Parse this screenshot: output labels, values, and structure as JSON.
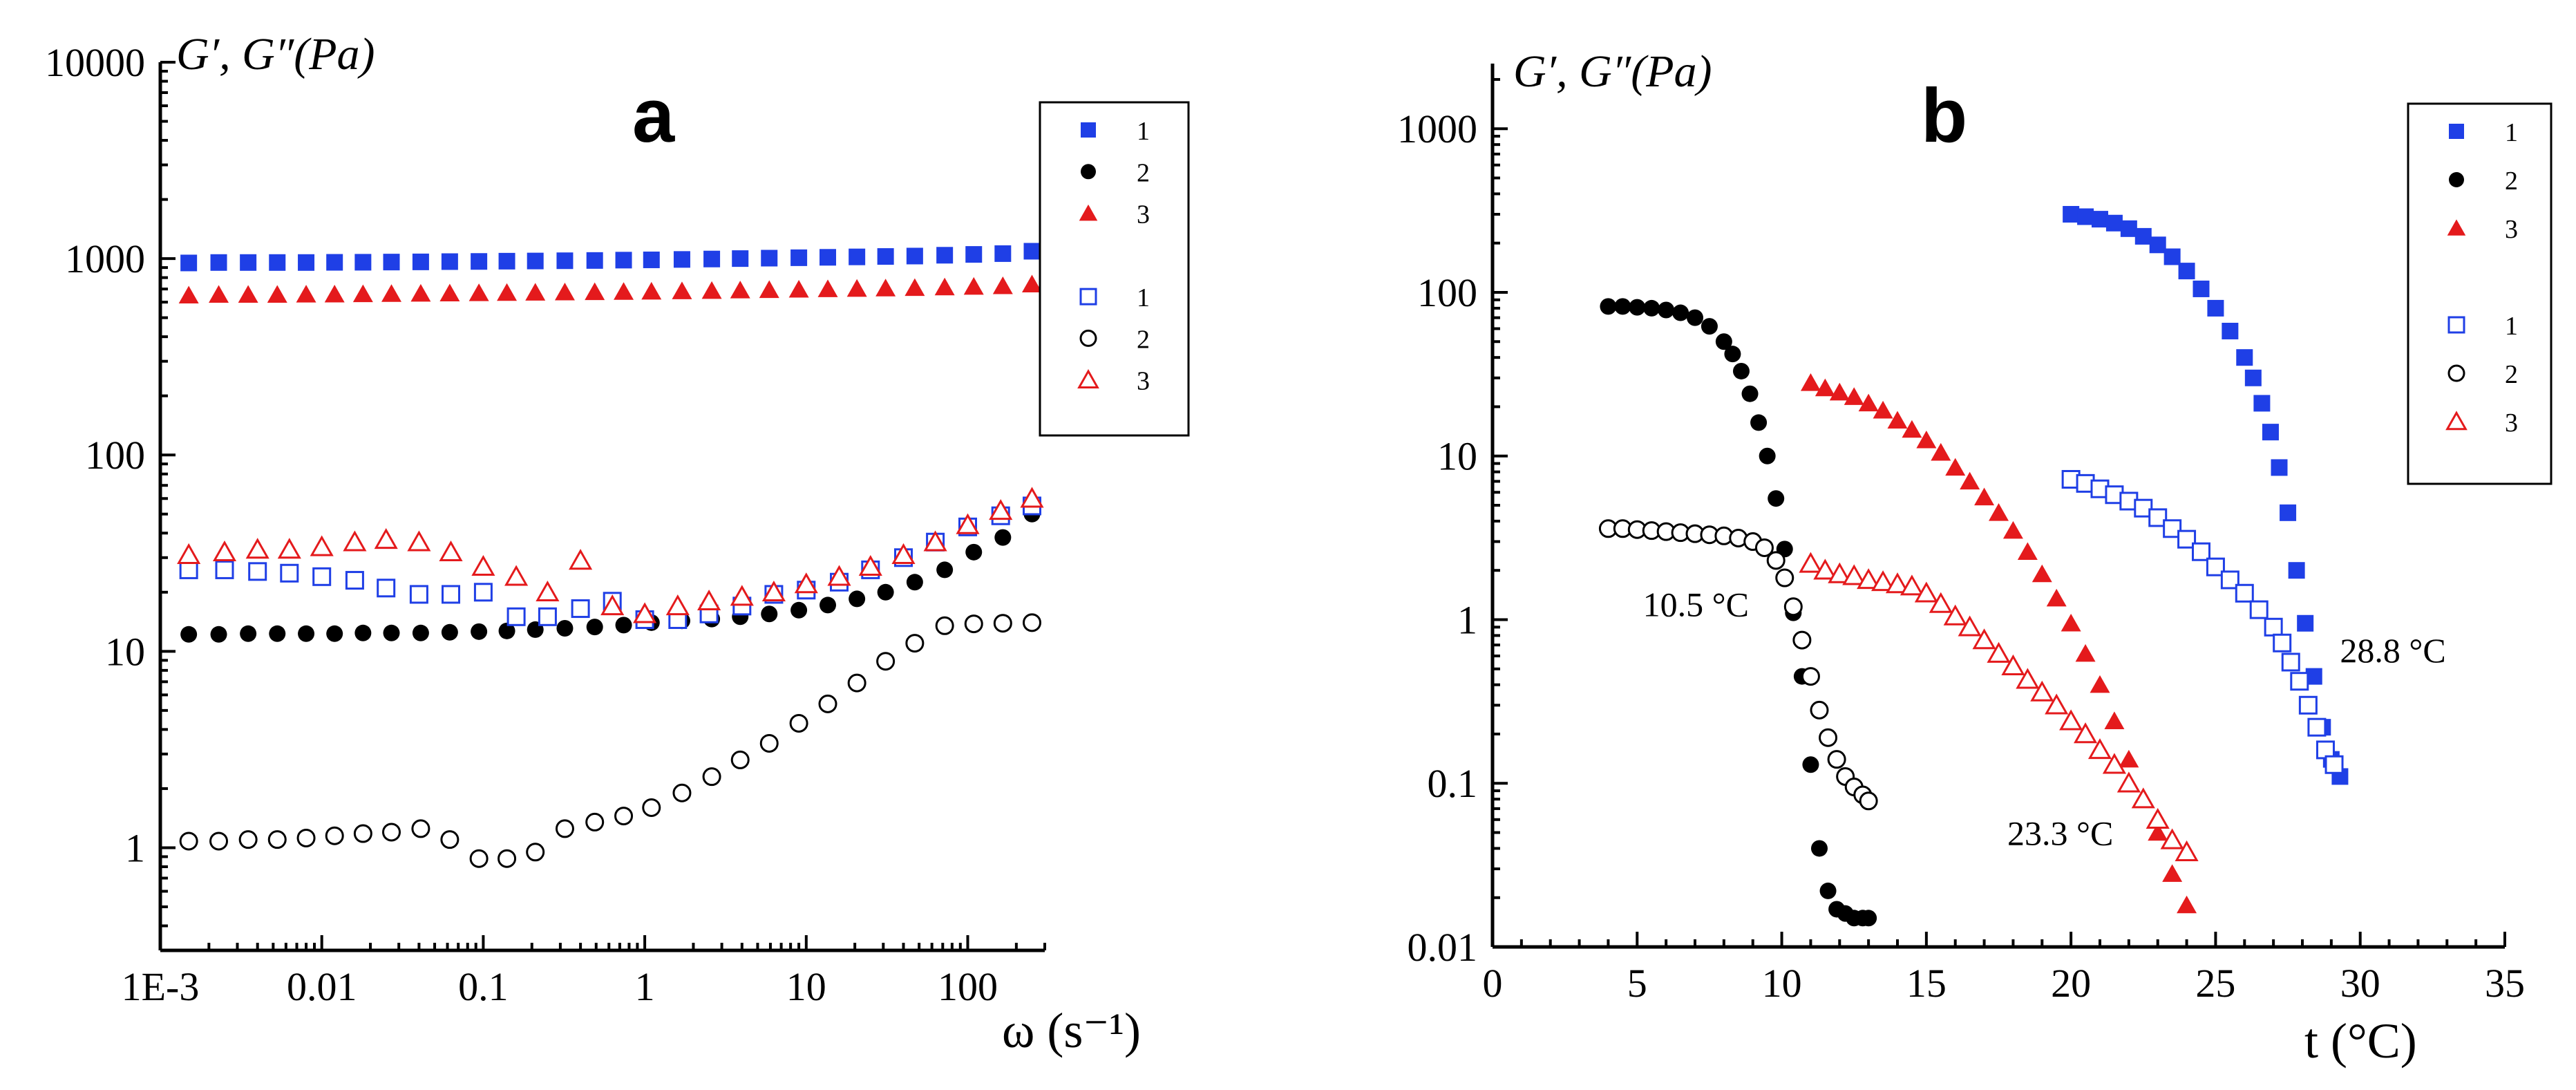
{
  "colors": {
    "series1": "#1f3fe6",
    "series2": "#000000",
    "series3": "#e41a1c",
    "axis": "#000000"
  },
  "chart_data": [
    {
      "type": "scatter",
      "panel_label": "a",
      "ylabel": "G′, G″(Pa)",
      "xlabel": "ω (s⁻¹)",
      "x_scale": "log",
      "y_scale": "log",
      "xlim": [
        0.001,
        300
      ],
      "ylim": [
        0.3,
        10000
      ],
      "x_ticks": [
        {
          "value": 0.001,
          "label": "1E-3"
        },
        {
          "value": 0.01,
          "label": "0.01"
        },
        {
          "value": 0.1,
          "label": "0.1"
        },
        {
          "value": 1,
          "label": "1"
        },
        {
          "value": 10,
          "label": "10"
        },
        {
          "value": 100,
          "label": "100"
        }
      ],
      "y_ticks": [
        {
          "value": 1,
          "label": "1"
        },
        {
          "value": 10,
          "label": "10"
        },
        {
          "value": 100,
          "label": "100"
        },
        {
          "value": 1000,
          "label": "1000"
        },
        {
          "value": 10000,
          "label": "10000"
        }
      ],
      "legend": {
        "placement": "top-right",
        "entries": [
          {
            "label": "1",
            "series": 0
          },
          {
            "label": "2",
            "series": 1
          },
          {
            "label": "3",
            "series": 2
          },
          {
            "label": "1",
            "series": 3
          },
          {
            "label": "2",
            "series": 4
          },
          {
            "label": "3",
            "series": 5
          }
        ]
      },
      "annotations": [],
      "series": [
        {
          "name": "1",
          "kind": "G′",
          "marker": "square",
          "filled": true,
          "color": "#1f3fe6",
          "x": [
            0.0015,
            0.0023,
            0.0035,
            0.0053,
            0.008,
            0.012,
            0.018,
            0.027,
            0.041,
            0.062,
            0.094,
            0.14,
            0.21,
            0.32,
            0.49,
            0.74,
            1.1,
            1.7,
            2.6,
            3.9,
            5.9,
            9,
            13.6,
            20.6,
            31,
            47,
            72,
            109,
            165,
            250
          ],
          "y": [
            950,
            955,
            955,
            955,
            955,
            957,
            958,
            960,
            962,
            965,
            967,
            970,
            972,
            975,
            978,
            982,
            985,
            990,
            995,
            1000,
            1005,
            1010,
            1015,
            1020,
            1025,
            1030,
            1040,
            1050,
            1060,
            1090
          ]
        },
        {
          "name": "2",
          "kind": "G′",
          "marker": "circle",
          "filled": true,
          "color": "#000000",
          "x": [
            0.0015,
            0.0023,
            0.0035,
            0.0053,
            0.008,
            0.012,
            0.018,
            0.027,
            0.041,
            0.062,
            0.094,
            0.14,
            0.21,
            0.32,
            0.49,
            0.74,
            1.1,
            1.7,
            2.6,
            3.9,
            5.9,
            9,
            13.6,
            20.6,
            31,
            47,
            72,
            109,
            165,
            250
          ],
          "y": [
            12.2,
            12.2,
            12.3,
            12.3,
            12.3,
            12.3,
            12.4,
            12.4,
            12.4,
            12.5,
            12.6,
            12.7,
            12.9,
            13.1,
            13.3,
            13.6,
            14,
            14.3,
            14.6,
            15,
            15.5,
            16.2,
            17.2,
            18.5,
            20,
            22.5,
            26,
            32,
            38,
            50
          ]
        },
        {
          "name": "3",
          "kind": "G′",
          "marker": "triangle",
          "filled": true,
          "color": "#e41a1c",
          "x": [
            0.0015,
            0.0023,
            0.0035,
            0.0053,
            0.008,
            0.012,
            0.018,
            0.027,
            0.041,
            0.062,
            0.094,
            0.14,
            0.21,
            0.32,
            0.49,
            0.74,
            1.1,
            1.7,
            2.6,
            3.9,
            5.9,
            9,
            13.6,
            20.6,
            31,
            47,
            72,
            109,
            165,
            250
          ],
          "y": [
            650,
            655,
            655,
            655,
            657,
            658,
            660,
            662,
            664,
            666,
            668,
            670,
            672,
            674,
            676,
            678,
            680,
            683,
            686,
            690,
            693,
            696,
            700,
            703,
            706,
            710,
            715,
            720,
            725,
            740
          ]
        },
        {
          "name": "1",
          "kind": "G″",
          "marker": "square",
          "filled": false,
          "color": "#1f3fe6",
          "x": [
            0.0015,
            0.0025,
            0.004,
            0.0063,
            0.01,
            0.016,
            0.025,
            0.04,
            0.063,
            0.1,
            0.16,
            0.25,
            0.4,
            0.63,
            1,
            1.6,
            2.5,
            4,
            6.3,
            10,
            16,
            25,
            40,
            63,
            100,
            160,
            250
          ],
          "y": [
            26,
            26,
            25.5,
            25,
            24,
            23,
            21,
            19.5,
            19.5,
            20,
            15,
            15,
            16.5,
            18,
            14.5,
            14.5,
            15.5,
            17,
            19.5,
            20.5,
            22.5,
            26,
            30,
            36,
            43,
            49,
            55
          ]
        },
        {
          "name": "2",
          "kind": "G″",
          "marker": "circle",
          "filled": false,
          "color": "#000000",
          "x": [
            0.0015,
            0.0023,
            0.0035,
            0.0053,
            0.008,
            0.012,
            0.018,
            0.027,
            0.041,
            0.062,
            0.094,
            0.14,
            0.21,
            0.32,
            0.49,
            0.74,
            1.1,
            1.7,
            2.6,
            3.9,
            5.9,
            9,
            13.6,
            20.6,
            31,
            47,
            72,
            109,
            165,
            250
          ],
          "y": [
            1.08,
            1.08,
            1.1,
            1.1,
            1.12,
            1.15,
            1.18,
            1.2,
            1.25,
            1.1,
            0.88,
            0.88,
            0.95,
            1.25,
            1.35,
            1.45,
            1.6,
            1.9,
            2.3,
            2.8,
            3.4,
            4.3,
            5.4,
            6.9,
            8.9,
            11,
            13.5,
            13.8,
            13.9,
            14
          ]
        },
        {
          "name": "3",
          "kind": "G″",
          "marker": "triangle",
          "filled": false,
          "color": "#e41a1c",
          "x": [
            0.0015,
            0.0025,
            0.004,
            0.0063,
            0.01,
            0.016,
            0.025,
            0.04,
            0.063,
            0.1,
            0.16,
            0.25,
            0.4,
            0.63,
            1,
            1.6,
            2.5,
            4,
            6.3,
            10,
            16,
            25,
            40,
            63,
            100,
            160,
            250
          ],
          "y": [
            31,
            32,
            33,
            33,
            34,
            36,
            37,
            36,
            32,
            27,
            24,
            20,
            29,
            17,
            15.5,
            17,
            18,
            19,
            20,
            22,
            24,
            27,
            31,
            36,
            44,
            52,
            60
          ]
        }
      ]
    },
    {
      "type": "scatter",
      "panel_label": "b",
      "ylabel": "G′, G″(Pa)",
      "xlabel": "t (°C)",
      "x_scale": "linear",
      "y_scale": "log",
      "xlim": [
        0,
        35
      ],
      "ylim": [
        0.01,
        2500
      ],
      "x_ticks": [
        {
          "value": 0,
          "label": "0"
        },
        {
          "value": 5,
          "label": "5"
        },
        {
          "value": 10,
          "label": "10"
        },
        {
          "value": 15,
          "label": "15"
        },
        {
          "value": 20,
          "label": "20"
        },
        {
          "value": 25,
          "label": "25"
        },
        {
          "value": 30,
          "label": "30"
        },
        {
          "value": 35,
          "label": "35"
        }
      ],
      "y_ticks": [
        {
          "value": 0.01,
          "label": "0.01"
        },
        {
          "value": 0.1,
          "label": "0.1"
        },
        {
          "value": 1,
          "label": "1"
        },
        {
          "value": 10,
          "label": "10"
        },
        {
          "value": 100,
          "label": "100"
        },
        {
          "value": 1000,
          "label": "1000"
        }
      ],
      "legend": {
        "placement": "top-right",
        "entries": [
          {
            "label": "1",
            "series": 0
          },
          {
            "label": "2",
            "series": 1
          },
          {
            "label": "3",
            "series": 2
          },
          {
            "label": "1",
            "series": 3
          },
          {
            "label": "2",
            "series": 4
          },
          {
            "label": "3",
            "series": 5
          }
        ]
      },
      "annotations": [
        {
          "text": "10.5 °C",
          "x": 5.2,
          "y": 1.05
        },
        {
          "text": "23.3 °C",
          "x": 17.8,
          "y": 0.042
        },
        {
          "text": "28.8 °C",
          "x": 29.3,
          "y": 0.55
        }
      ],
      "series": [
        {
          "name": "1",
          "kind": "G′",
          "marker": "square",
          "filled": true,
          "color": "#1f3fe6",
          "x": [
            20,
            20.5,
            21,
            21.5,
            22,
            22.5,
            23,
            23.5,
            24,
            24.5,
            25,
            25.5,
            26,
            26.3,
            26.6,
            26.9,
            27.2,
            27.5,
            27.8,
            28.1,
            28.4,
            28.7,
            29,
            29.3
          ],
          "y": [
            300,
            290,
            280,
            265,
            245,
            220,
            195,
            165,
            135,
            105,
            80,
            58,
            40,
            30,
            21,
            14,
            8.5,
            4.5,
            2,
            0.95,
            0.45,
            0.22,
            0.14,
            0.11
          ]
        },
        {
          "name": "2",
          "kind": "G′",
          "marker": "circle",
          "filled": true,
          "color": "#000000",
          "x": [
            4,
            4.5,
            5,
            5.5,
            6,
            6.5,
            7,
            7.5,
            8,
            8.3,
            8.6,
            8.9,
            9.2,
            9.5,
            9.8,
            10.1,
            10.4,
            10.7,
            11,
            11.3,
            11.6,
            11.9,
            12.2,
            12.5,
            12.8,
            13
          ],
          "y": [
            82,
            82,
            81,
            80,
            78,
            75,
            70,
            62,
            50,
            42,
            33,
            24,
            16,
            10,
            5.5,
            2.7,
            1.1,
            0.45,
            0.13,
            0.04,
            0.022,
            0.017,
            0.016,
            0.015,
            0.015,
            0.015
          ]
        },
        {
          "name": "3",
          "kind": "G′",
          "marker": "triangle",
          "filled": true,
          "color": "#e41a1c",
          "x": [
            11,
            11.5,
            12,
            12.5,
            13,
            13.5,
            14,
            14.5,
            15,
            15.5,
            16,
            16.5,
            17,
            17.5,
            18,
            18.5,
            19,
            19.5,
            20,
            20.5,
            21,
            21.5,
            22,
            22.5,
            23,
            23.5,
            24
          ],
          "y": [
            28,
            26,
            24.5,
            23,
            21,
            19,
            16.5,
            14.5,
            12.5,
            10.5,
            8.5,
            7,
            5.6,
            4.5,
            3.5,
            2.6,
            1.9,
            1.35,
            0.95,
            0.62,
            0.4,
            0.24,
            0.14,
            0.08,
            0.05,
            0.028,
            0.018
          ]
        },
        {
          "name": "1",
          "kind": "G″",
          "marker": "square",
          "filled": false,
          "color": "#1f3fe6",
          "x": [
            20,
            20.5,
            21,
            21.5,
            22,
            22.5,
            23,
            23.5,
            24,
            24.5,
            25,
            25.5,
            26,
            26.5,
            27,
            27.3,
            27.6,
            27.9,
            28.2,
            28.5,
            28.8,
            29.1
          ],
          "y": [
            7.2,
            6.8,
            6.3,
            5.8,
            5.3,
            4.8,
            4.2,
            3.6,
            3.1,
            2.6,
            2.1,
            1.75,
            1.45,
            1.15,
            0.9,
            0.72,
            0.55,
            0.42,
            0.3,
            0.22,
            0.16,
            0.13
          ]
        },
        {
          "name": "2",
          "kind": "G″",
          "marker": "circle",
          "filled": false,
          "color": "#000000",
          "x": [
            4,
            4.5,
            5,
            5.5,
            6,
            6.5,
            7,
            7.5,
            8,
            8.5,
            9,
            9.4,
            9.8,
            10.1,
            10.4,
            10.7,
            11,
            11.3,
            11.6,
            11.9,
            12.2,
            12.5,
            12.8,
            13
          ],
          "y": [
            3.6,
            3.6,
            3.55,
            3.5,
            3.45,
            3.4,
            3.35,
            3.3,
            3.25,
            3.15,
            3,
            2.75,
            2.3,
            1.8,
            1.2,
            0.75,
            0.45,
            0.28,
            0.19,
            0.14,
            0.11,
            0.095,
            0.085,
            0.078
          ]
        },
        {
          "name": "3",
          "kind": "G″",
          "marker": "triangle",
          "filled": false,
          "color": "#e41a1c",
          "x": [
            11,
            11.5,
            12,
            12.5,
            13,
            13.5,
            14,
            14.5,
            15,
            15.5,
            16,
            16.5,
            17,
            17.5,
            18,
            18.5,
            19,
            19.5,
            20,
            20.5,
            21,
            21.5,
            22,
            22.5,
            23,
            23.5,
            24
          ],
          "y": [
            2.2,
            2,
            1.9,
            1.85,
            1.75,
            1.7,
            1.65,
            1.6,
            1.45,
            1.25,
            1.05,
            0.9,
            0.75,
            0.62,
            0.52,
            0.43,
            0.36,
            0.3,
            0.24,
            0.2,
            0.16,
            0.13,
            0.1,
            0.08,
            0.06,
            0.045,
            0.038
          ]
        }
      ]
    }
  ]
}
